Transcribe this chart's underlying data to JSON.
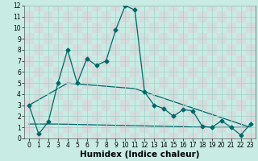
{
  "xlabel": "Humidex (Indice chaleur)",
  "bg_color": "#c8ece4",
  "grid_color": "#a8d4cc",
  "line_color": "#006868",
  "xlim": [
    -0.5,
    23.5
  ],
  "ylim": [
    0,
    12
  ],
  "xticks": [
    0,
    1,
    2,
    3,
    4,
    5,
    6,
    7,
    8,
    9,
    10,
    11,
    12,
    13,
    14,
    15,
    16,
    17,
    18,
    19,
    20,
    21,
    22,
    23
  ],
  "yticks": [
    0,
    1,
    2,
    3,
    4,
    5,
    6,
    7,
    8,
    9,
    10,
    11,
    12
  ],
  "series1_x": [
    0,
    1,
    2,
    3,
    4,
    5,
    6,
    7,
    8,
    9,
    10,
    11,
    12,
    13,
    14,
    15,
    16,
    17,
    18,
    19,
    20,
    21,
    22,
    23
  ],
  "series1_y": [
    3,
    0.4,
    1.5,
    5.0,
    8.0,
    5.0,
    7.2,
    6.6,
    7.0,
    9.8,
    12.0,
    11.6,
    4.2,
    3.0,
    2.7,
    2.0,
    2.6,
    2.5,
    1.1,
    1.0,
    1.6,
    1.0,
    0.3,
    1.3
  ],
  "series2_x": [
    0,
    4,
    11,
    23
  ],
  "series2_y": [
    3.0,
    5.0,
    4.5,
    1.0
  ],
  "series3_x": [
    0,
    3,
    19,
    23
  ],
  "series3_y": [
    1.3,
    1.3,
    1.0,
    1.0
  ],
  "marker": "D",
  "marker_size": 2.5,
  "tick_fontsize": 5.5,
  "xlabel_fontsize": 7.5
}
